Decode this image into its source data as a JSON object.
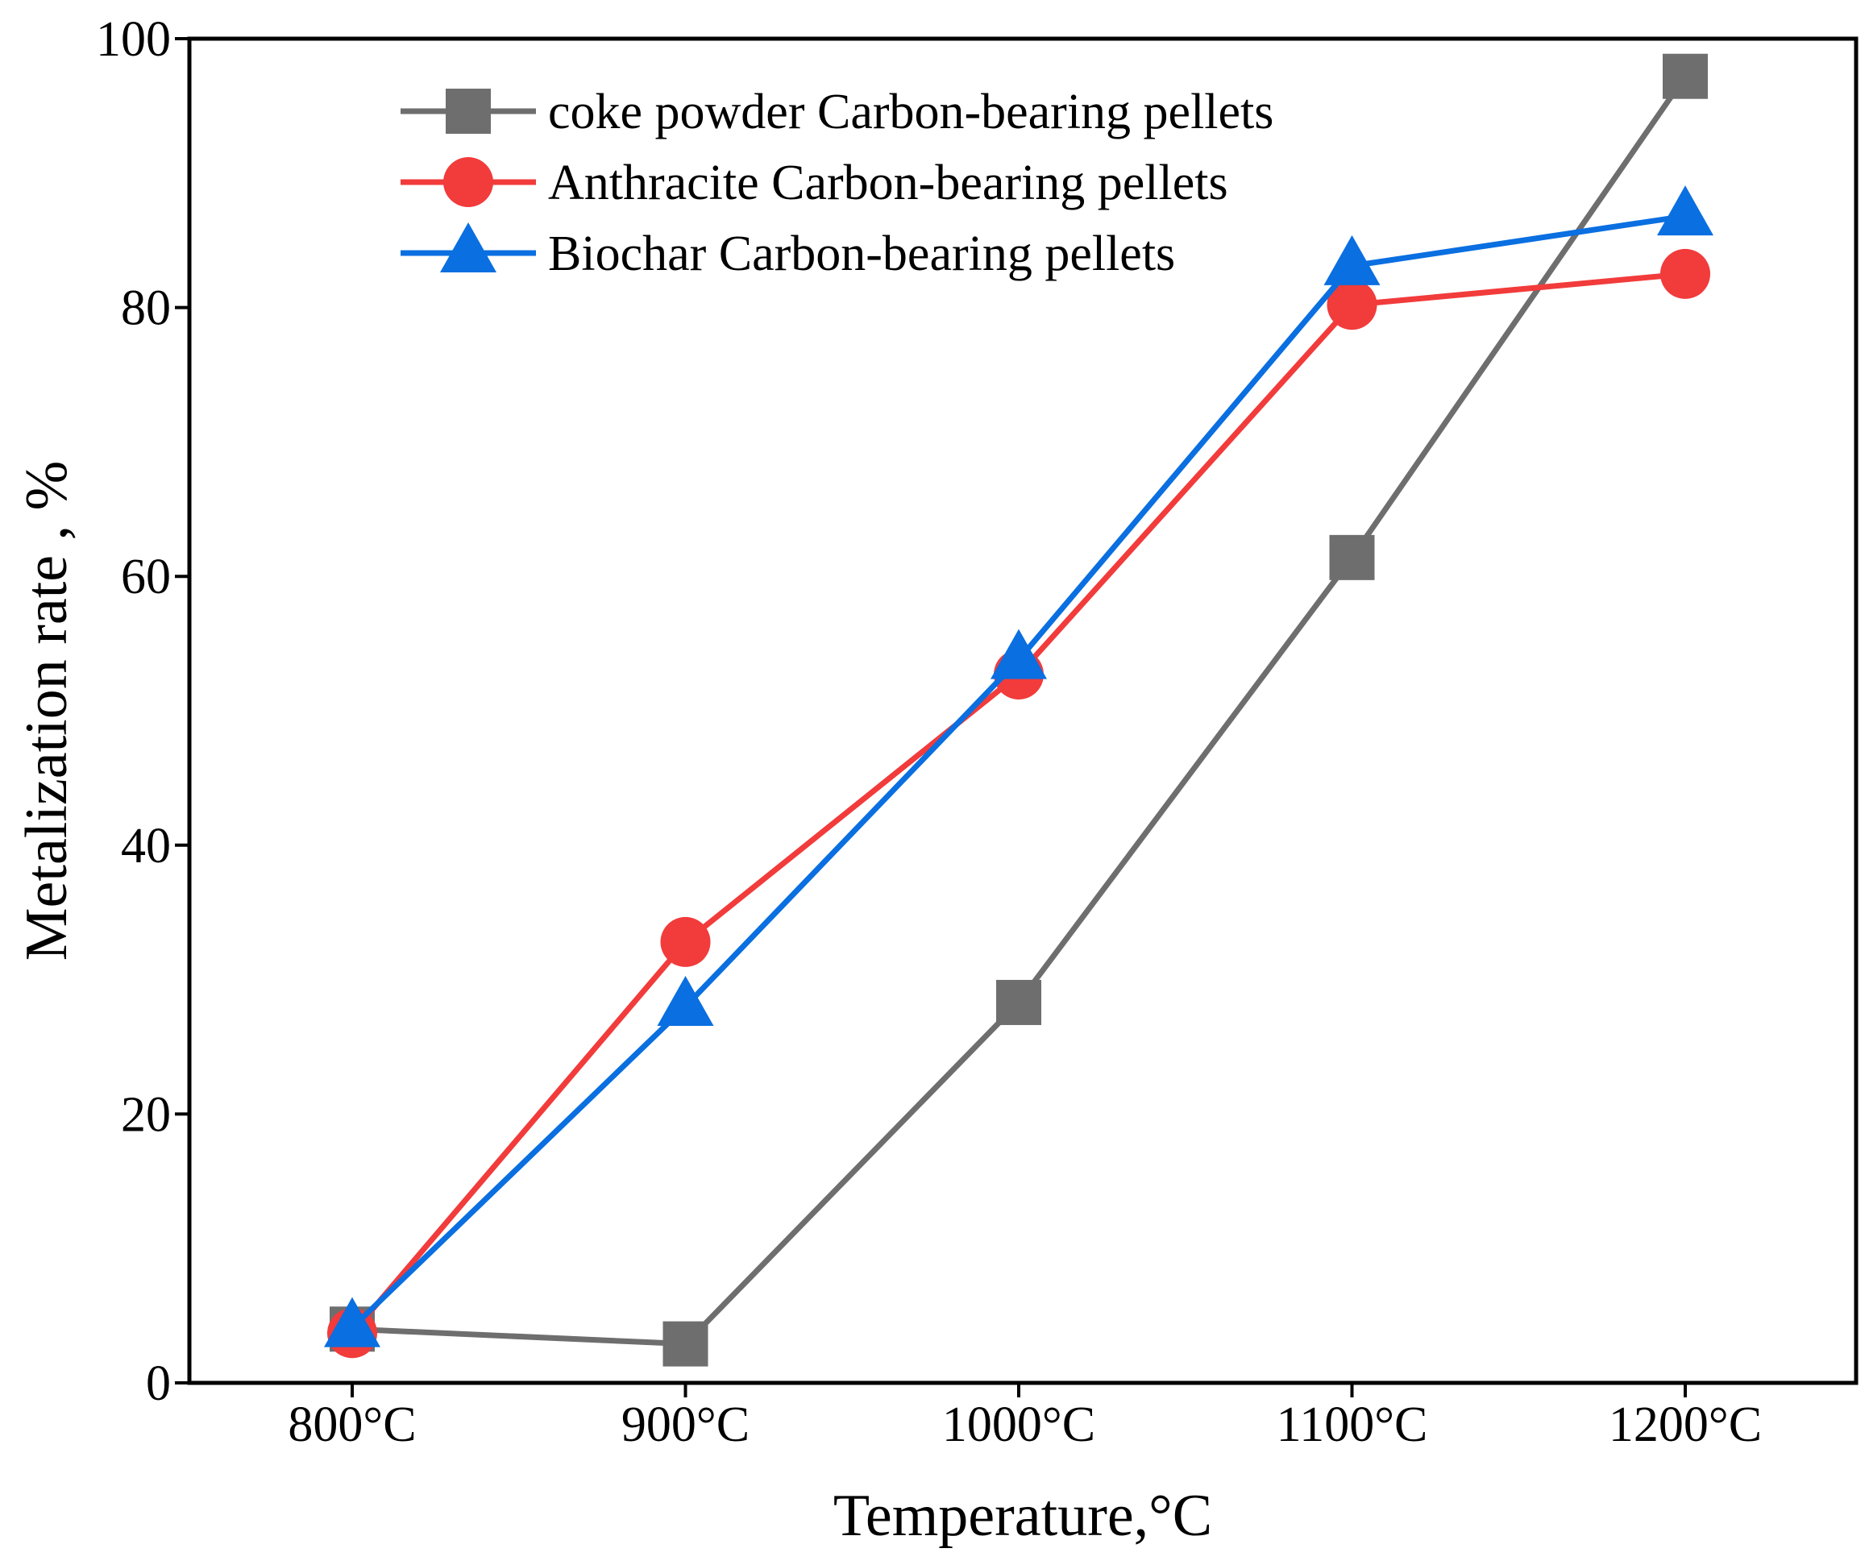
{
  "chart_data": {
    "type": "line",
    "title": "",
    "xlabel": "Temperature,°C",
    "ylabel": "Metalization rate , %",
    "categories": [
      "800°C",
      "900°C",
      "1000°C",
      "1100°C",
      "1200°C"
    ],
    "yticks": [
      "0",
      "20",
      "40",
      "60",
      "80",
      "100"
    ],
    "ylim": [
      0,
      100
    ],
    "grid": false,
    "legend_position": "top-left",
    "series": [
      {
        "name": "coke powder Carbon-bearing pellets",
        "marker": "square",
        "color": "#6e6e6e",
        "values": [
          4.0,
          2.9,
          28.3,
          61.4,
          97.2
        ]
      },
      {
        "name": "Anthracite Carbon-bearing pellets",
        "marker": "circle",
        "color": "#f23b3b",
        "values": [
          3.7,
          32.8,
          52.7,
          80.2,
          82.5
        ]
      },
      {
        "name": "Biochar Carbon-bearing pellets",
        "marker": "triangle",
        "color": "#0a6fe0",
        "values": [
          4.1,
          28.0,
          53.8,
          83.1,
          86.8
        ]
      }
    ]
  }
}
